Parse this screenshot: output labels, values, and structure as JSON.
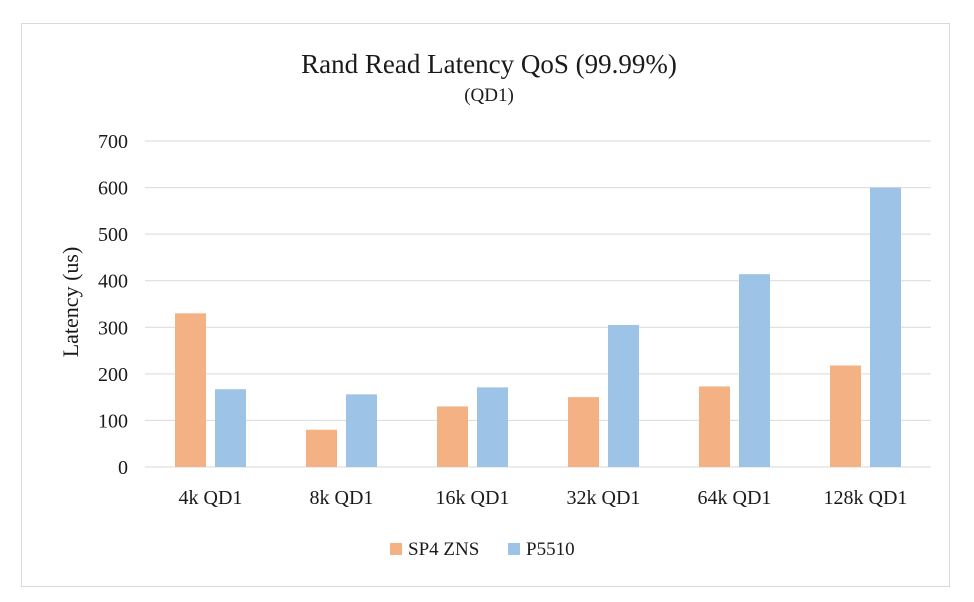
{
  "chart_data": {
    "type": "bar",
    "title": "Rand Read Latency QoS (99.99%)",
    "subtitle": "(QD1)",
    "xlabel": "",
    "ylabel": "Latency  (us)",
    "categories": [
      "4k QD1",
      "8k QD1",
      "16k QD1",
      "32k QD1",
      "64k QD1",
      "128k QD1"
    ],
    "series": [
      {
        "name": "SP4 ZNS",
        "color": "#f4b183",
        "values": [
          330,
          80,
          130,
          150,
          173,
          218
        ]
      },
      {
        "name": "P5510",
        "color": "#9dc3e6",
        "values": [
          167,
          156,
          171,
          305,
          414,
          600
        ]
      }
    ],
    "ylim": [
      0,
      700
    ],
    "yticks": [
      0,
      100,
      200,
      300,
      400,
      500,
      600,
      700
    ],
    "grid": true,
    "legend": "bottom",
    "grid_color": "#d9d9d9"
  }
}
